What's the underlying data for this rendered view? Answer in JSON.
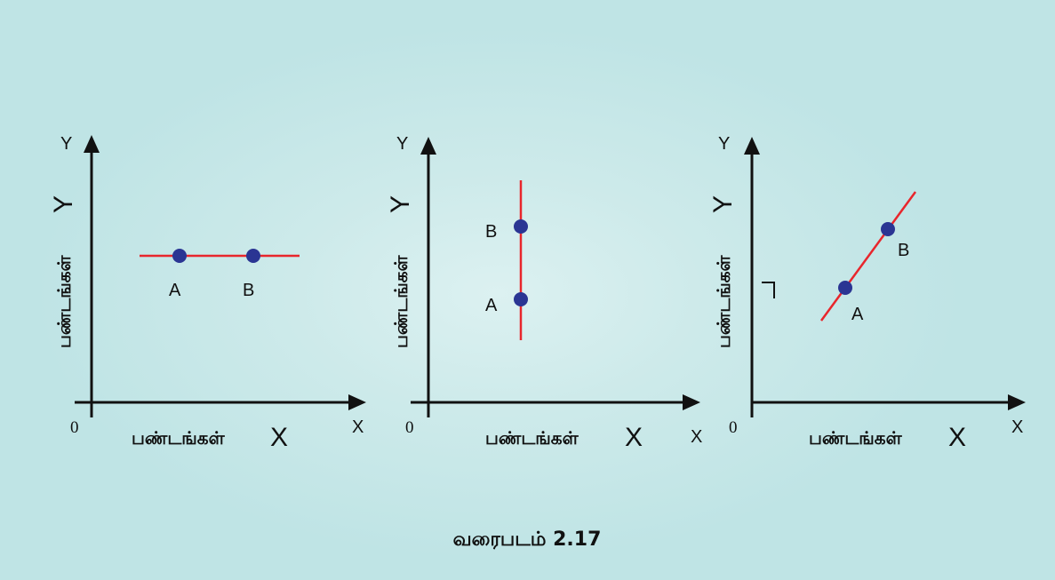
{
  "caption": "வரைபடம் 2.17",
  "panels": [
    {
      "axis_y_end": "Y",
      "axis_x_end": "X",
      "origin": "0",
      "x_axis_label": "பண்டங்கள்",
      "x_axis_letter": "X",
      "y_axis_label": "பண்டங்கள்",
      "y_axis_letter": "Y",
      "point_a": "A",
      "point_b": "B"
    },
    {
      "axis_y_end": "Y",
      "axis_x_end": "X",
      "origin": "0",
      "x_axis_label": "பண்டங்கள்",
      "x_axis_letter": "X",
      "y_axis_label": "பண்டங்கள்",
      "y_axis_letter": "Y",
      "point_a": "A",
      "point_b": "B"
    },
    {
      "axis_y_end": "Y",
      "axis_x_end": "X",
      "origin": "0",
      "x_axis_label": "பண்டங்கள்",
      "x_axis_letter": "X",
      "y_axis_label": "பண்டங்கள்",
      "y_axis_letter": "Y",
      "point_a": "A",
      "point_b": "B"
    }
  ],
  "colors": {
    "background": "#c4e6e6",
    "curve": "#e8262c",
    "point": "#2a3593",
    "axis": "#111111"
  }
}
